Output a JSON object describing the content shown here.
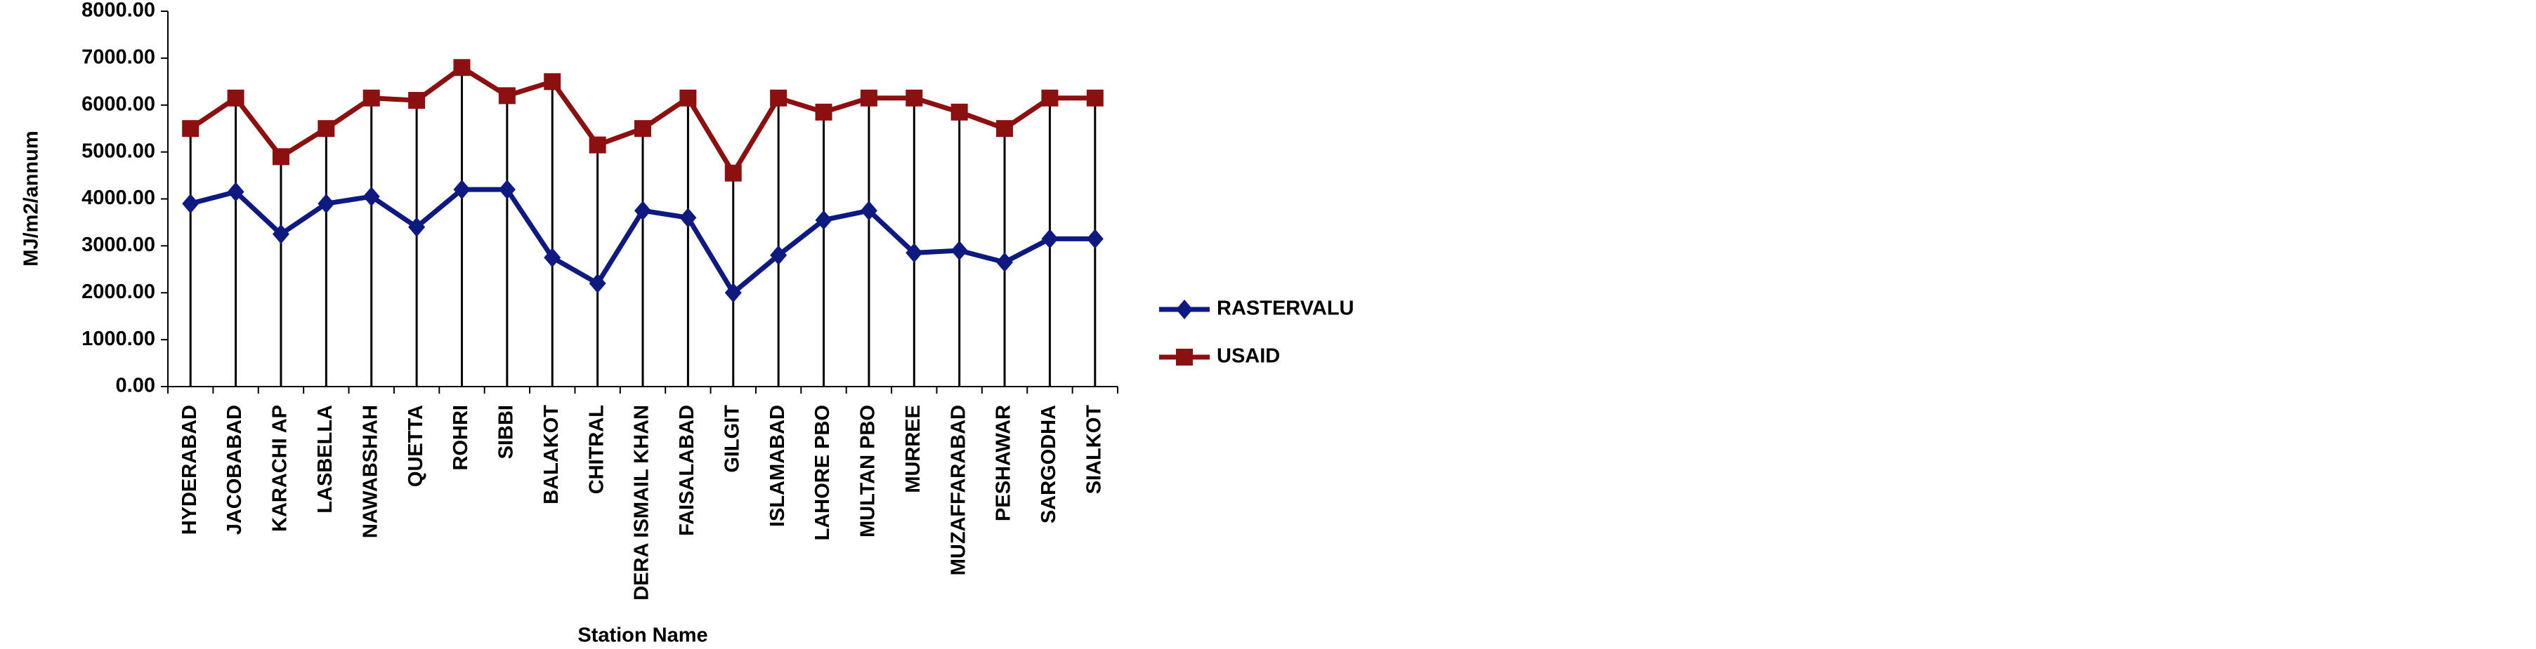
{
  "chart_data": {
    "type": "line",
    "xlabel": "Station Name",
    "ylabel": "MJ/m2/annum",
    "categories": [
      "HYDERABAD",
      "JACOBABAD",
      "KARACHI AP",
      "LASBELLA",
      "NAWABSHAH",
      "QUETTA",
      "ROHRI",
      "SIBBI",
      "BALAKOT",
      "CHITRAL",
      "DERA ISMAIL KHAN",
      "FAISALABAD",
      "GILGIT",
      "ISLAMABAD",
      "LAHORE PBO",
      "MULTAN PBO",
      "MURREE",
      "MUZAFFARABAD",
      "PESHAWAR",
      "SARGODHA",
      "SIALKOT"
    ],
    "series": [
      {
        "name": "RASTERVALU",
        "color": "#0f1a80",
        "marker": "diamond",
        "values": [
          3900,
          4150,
          3250,
          3900,
          4050,
          3400,
          4200,
          4200,
          2750,
          2200,
          3750,
          3600,
          2000,
          2800,
          3550,
          3750,
          2850,
          2900,
          2650,
          3150,
          3150
        ]
      },
      {
        "name": "USAID",
        "color": "#8c1010",
        "marker": "square",
        "values": [
          5500,
          6150,
          4900,
          5500,
          6150,
          6100,
          6800,
          6200,
          6500,
          5150,
          5500,
          6150,
          4550,
          6150,
          5850,
          6150,
          6150,
          5850,
          5500,
          6150,
          6150
        ]
      }
    ],
    "ylim": [
      0,
      8000
    ],
    "yticks": [
      {
        "value": 0,
        "label": "0.00"
      },
      {
        "value": 1000,
        "label": "1000.00"
      },
      {
        "value": 2000,
        "label": "2000.00"
      },
      {
        "value": 3000,
        "label": "3000.00"
      },
      {
        "value": 4000,
        "label": "4000.00"
      },
      {
        "value": 5000,
        "label": "5000.00"
      },
      {
        "value": 6000,
        "label": "6000.00"
      },
      {
        "value": 7000,
        "label": "7000.00"
      },
      {
        "value": 8000,
        "label": "8000.00"
      }
    ],
    "drop_lines": true,
    "legend": "right"
  }
}
